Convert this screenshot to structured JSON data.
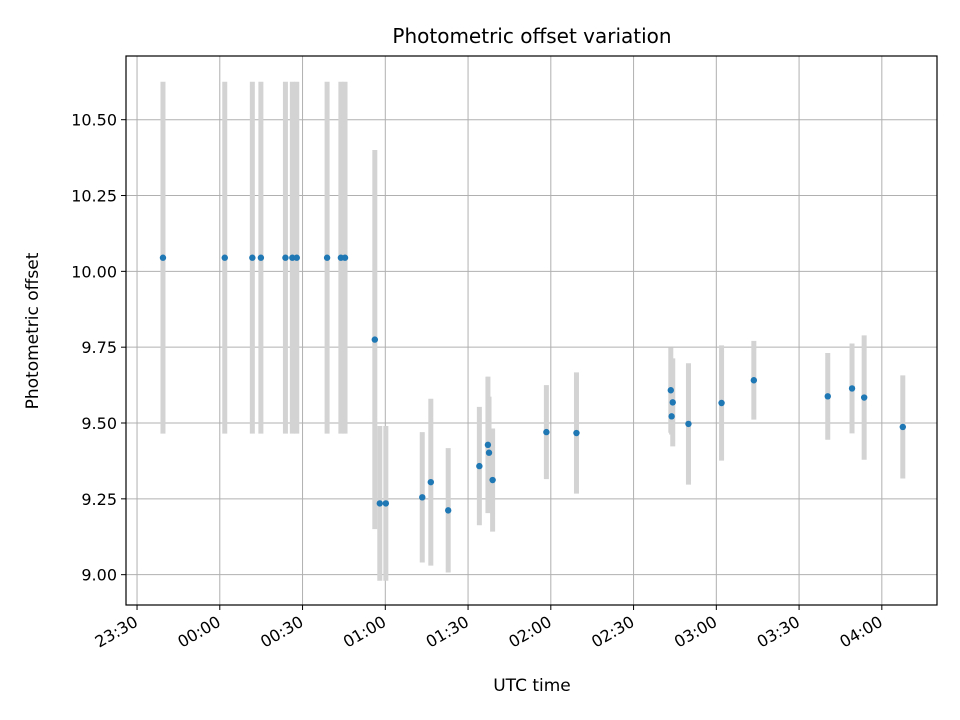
{
  "chart_data": {
    "type": "scatter",
    "title": "Photometric offset variation",
    "xlabel": "UTC time",
    "ylabel": "Photometric offset",
    "x_ticks": [
      "23:30",
      "00:00",
      "00:30",
      "01:00",
      "01:30",
      "02:00",
      "02:30",
      "03:00",
      "03:30",
      "04:00"
    ],
    "x_tick_minutes": [
      -30,
      0,
      30,
      60,
      90,
      120,
      150,
      180,
      210,
      240
    ],
    "xlim_minutes": [
      -34,
      260
    ],
    "y_ticks": [
      "9.00",
      "9.25",
      "9.50",
      "9.75",
      "10.00",
      "10.25",
      "10.50"
    ],
    "y_tick_values": [
      9.0,
      9.25,
      9.5,
      9.75,
      10.0,
      10.25,
      10.5
    ],
    "ylim": [
      8.9,
      10.71
    ],
    "grid": true,
    "marker_color": "#1f77b4",
    "errorbar_color": "#d3d3d3",
    "points": [
      {
        "t": -20.6,
        "y": 10.045,
        "err": 0.58
      },
      {
        "t": 1.8,
        "y": 10.045,
        "err": 0.58
      },
      {
        "t": 11.8,
        "y": 10.045,
        "err": 0.58
      },
      {
        "t": 14.9,
        "y": 10.045,
        "err": 0.58
      },
      {
        "t": 23.8,
        "y": 10.045,
        "err": 0.58
      },
      {
        "t": 26.3,
        "y": 10.045,
        "err": 0.58
      },
      {
        "t": 27.9,
        "y": 10.045,
        "err": 0.58
      },
      {
        "t": 38.9,
        "y": 10.045,
        "err": 0.58
      },
      {
        "t": 43.9,
        "y": 10.045,
        "err": 0.58
      },
      {
        "t": 45.4,
        "y": 10.045,
        "err": 0.58
      },
      {
        "t": 56.2,
        "y": 9.775,
        "err": 0.625
      },
      {
        "t": 58.0,
        "y": 9.235,
        "err": 0.255
      },
      {
        "t": 60.2,
        "y": 9.235,
        "err": 0.255
      },
      {
        "t": 73.4,
        "y": 9.255,
        "err": 0.215
      },
      {
        "t": 76.5,
        "y": 9.305,
        "err": 0.275
      },
      {
        "t": 82.8,
        "y": 9.212,
        "err": 0.205
      },
      {
        "t": 94.1,
        "y": 9.358,
        "err": 0.195
      },
      {
        "t": 97.2,
        "y": 9.428,
        "err": 0.225
      },
      {
        "t": 97.6,
        "y": 9.402,
        "err": 0.185
      },
      {
        "t": 98.9,
        "y": 9.312,
        "err": 0.17
      },
      {
        "t": 118.4,
        "y": 9.47,
        "err": 0.155
      },
      {
        "t": 129.3,
        "y": 9.467,
        "err": 0.2
      },
      {
        "t": 163.5,
        "y": 9.608,
        "err": 0.14
      },
      {
        "t": 163.8,
        "y": 9.522,
        "err": 0.06
      },
      {
        "t": 164.2,
        "y": 9.568,
        "err": 0.145
      },
      {
        "t": 169.9,
        "y": 9.497,
        "err": 0.2
      },
      {
        "t": 181.9,
        "y": 9.566,
        "err": 0.19
      },
      {
        "t": 193.6,
        "y": 9.641,
        "err": 0.13
      },
      {
        "t": 220.4,
        "y": 9.588,
        "err": 0.143
      },
      {
        "t": 229.2,
        "y": 9.614,
        "err": 0.148
      },
      {
        "t": 233.6,
        "y": 9.584,
        "err": 0.205
      },
      {
        "t": 247.6,
        "y": 9.487,
        "err": 0.17
      }
    ]
  }
}
